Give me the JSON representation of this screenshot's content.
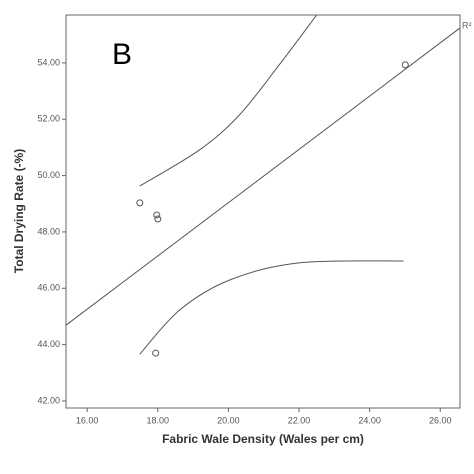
{
  "chart_data": {
    "type": "scatter",
    "label": "B",
    "annotation": "R²",
    "x_label": "Fabric Wale Density (Wales per cm)",
    "y_label": "Total Drying Rate (-%)",
    "x": [
      17.49,
      17.97,
      18.0,
      17.94,
      25.01
    ],
    "values": [
      49.03,
      48.6,
      48.46,
      43.7,
      53.93
    ],
    "color": "#555555",
    "lines": [
      {
        "x": [
          15.4,
          26.56
        ],
        "values": [
          44.69,
          55.24
        ]
      },
      {
        "x": [
          17.49,
          19.18,
          20.31,
          21.44,
          22.5
        ],
        "values": [
          49.63,
          50.91,
          52.15,
          53.93,
          55.7
        ]
      },
      {
        "x": [
          17.49,
          18.62,
          20.03,
          22.0,
          24.96
        ],
        "values": [
          43.66,
          45.23,
          46.29,
          46.9,
          46.97
        ]
      }
    ],
    "xlim": [
      15.4,
      26.56
    ],
    "ylim": [
      41.75,
      55.7
    ],
    "xticks": [
      {
        "value": 16,
        "label": "16.00"
      },
      {
        "value": 18,
        "label": "18.00"
      },
      {
        "value": 20,
        "label": "20.00"
      },
      {
        "value": 22,
        "label": "22.00"
      },
      {
        "value": 24,
        "label": "24.00"
      },
      {
        "value": 26,
        "label": "26.00"
      }
    ],
    "yticks": [
      {
        "value": 42,
        "label": "42.00"
      },
      {
        "value": 44,
        "label": "44.00"
      },
      {
        "value": 46,
        "label": "46.00"
      },
      {
        "value": 48,
        "label": "48.00"
      },
      {
        "value": 50,
        "label": "50.00"
      },
      {
        "value": 52,
        "label": "52.00"
      },
      {
        "value": 54,
        "label": "54.00"
      }
    ]
  }
}
